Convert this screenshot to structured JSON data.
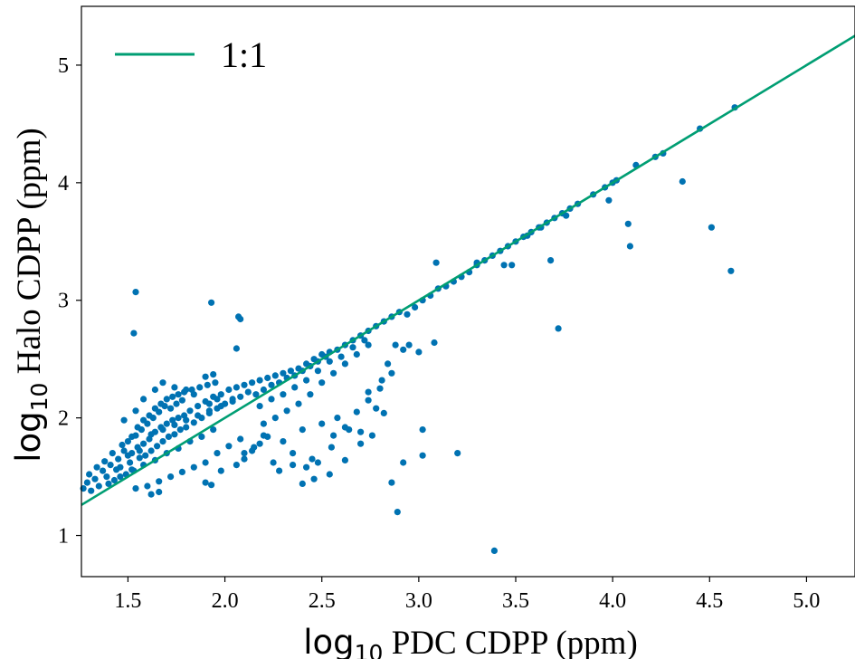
{
  "chart_data": {
    "type": "scatter",
    "xlim": [
      1.26,
      5.25
    ],
    "ylim": [
      0.65,
      5.5
    ],
    "x_ticks": [
      1.5,
      2.0,
      2.5,
      3.0,
      3.5,
      4.0,
      4.5,
      5.0
    ],
    "x_tick_labels": [
      "1.5",
      "2.0",
      "2.5",
      "3.0",
      "3.5",
      "4.0",
      "4.5",
      "5.0"
    ],
    "y_ticks": [
      1,
      2,
      3,
      4,
      5
    ],
    "y_tick_labels": [
      "1",
      "2",
      "3",
      "4",
      "5"
    ],
    "xlabel": {
      "log": "log",
      "sub": "10",
      "rest": " PDC CDPP (ppm)"
    },
    "ylabel": {
      "log": "log",
      "sub": "10",
      "rest": " Halo CDPP (ppm)"
    },
    "grid": false,
    "legend_position": "top-left",
    "colors": {
      "points": "#0072b2",
      "line": "#009e73"
    },
    "series": [
      {
        "kind": "line",
        "name": "1:1",
        "x": [
          1.26,
          5.25
        ],
        "y": [
          1.26,
          5.25
        ]
      },
      {
        "kind": "scatter",
        "points": [
          [
            1.27,
            1.4
          ],
          [
            1.29,
            1.45
          ],
          [
            1.31,
            1.38
          ],
          [
            1.33,
            1.48
          ],
          [
            1.35,
            1.42
          ],
          [
            1.37,
            1.55
          ],
          [
            1.39,
            1.5
          ],
          [
            1.41,
            1.6
          ],
          [
            1.43,
            1.47
          ],
          [
            1.45,
            1.65
          ],
          [
            1.46,
            1.58
          ],
          [
            1.48,
            1.72
          ],
          [
            1.49,
            1.52
          ],
          [
            1.5,
            1.8
          ],
          [
            1.51,
            1.62
          ],
          [
            1.52,
            1.7
          ],
          [
            1.53,
            1.55
          ],
          [
            1.54,
            1.85
          ],
          [
            1.55,
            1.75
          ],
          [
            1.56,
            1.66
          ],
          [
            1.57,
            1.9
          ],
          [
            1.58,
            1.78
          ],
          [
            1.59,
            1.68
          ],
          [
            1.6,
            1.95
          ],
          [
            1.61,
            1.82
          ],
          [
            1.62,
            1.72
          ],
          [
            1.63,
            2.0
          ],
          [
            1.64,
            1.88
          ],
          [
            1.65,
            1.76
          ],
          [
            1.66,
            2.05
          ],
          [
            1.67,
            1.92
          ],
          [
            1.68,
            1.8
          ],
          [
            1.69,
            2.1
          ],
          [
            1.7,
            1.95
          ],
          [
            1.71,
            1.84
          ],
          [
            1.72,
            2.08
          ],
          [
            1.73,
            1.98
          ],
          [
            1.74,
            1.86
          ],
          [
            1.75,
            2.12
          ],
          [
            1.76,
            2.0
          ],
          [
            1.77,
            1.9
          ],
          [
            1.78,
            2.15
          ],
          [
            1.79,
            2.02
          ],
          [
            1.8,
            1.92
          ],
          [
            1.82,
            2.06
          ],
          [
            1.84,
            1.96
          ],
          [
            1.86,
            2.1
          ],
          [
            1.88,
            2.0
          ],
          [
            1.9,
            2.14
          ],
          [
            1.92,
            2.04
          ],
          [
            1.94,
            2.18
          ],
          [
            1.96,
            2.08
          ],
          [
            1.98,
            2.2
          ],
          [
            2.0,
            2.12
          ],
          [
            2.02,
            2.24
          ],
          [
            2.04,
            2.16
          ],
          [
            2.06,
            2.26
          ],
          [
            2.08,
            2.18
          ],
          [
            2.1,
            2.28
          ],
          [
            2.12,
            2.22
          ],
          [
            1.3,
            1.52
          ],
          [
            1.34,
            1.58
          ],
          [
            1.38,
            1.63
          ],
          [
            1.42,
            1.7
          ],
          [
            1.44,
            1.56
          ],
          [
            1.47,
            1.77
          ],
          [
            1.52,
            1.84
          ],
          [
            1.55,
            1.92
          ],
          [
            1.58,
            1.98
          ],
          [
            1.61,
            2.02
          ],
          [
            1.64,
            2.08
          ],
          [
            1.67,
            2.12
          ],
          [
            1.7,
            2.16
          ],
          [
            1.73,
            2.18
          ],
          [
            1.76,
            2.2
          ],
          [
            1.79,
            2.22
          ],
          [
            1.83,
            2.24
          ],
          [
            1.87,
            2.26
          ],
          [
            1.91,
            2.28
          ],
          [
            1.95,
            2.3
          ],
          [
            1.4,
            1.44
          ],
          [
            1.46,
            1.5
          ],
          [
            1.52,
            1.56
          ],
          [
            1.58,
            1.6
          ],
          [
            1.64,
            1.64
          ],
          [
            1.7,
            1.7
          ],
          [
            1.76,
            1.74
          ],
          [
            1.82,
            1.8
          ],
          [
            1.88,
            1.84
          ],
          [
            1.94,
            1.9
          ],
          [
            1.5,
            1.68
          ],
          [
            1.56,
            1.72
          ],
          [
            1.62,
            1.86
          ],
          [
            1.68,
            1.9
          ],
          [
            1.74,
            1.94
          ],
          [
            1.8,
            1.98
          ],
          [
            1.86,
            2.02
          ],
          [
            1.92,
            2.06
          ],
          [
            1.98,
            2.1
          ],
          [
            2.04,
            2.14
          ],
          [
            1.54,
            1.4
          ],
          [
            1.6,
            1.42
          ],
          [
            1.66,
            1.46
          ],
          [
            1.72,
            1.5
          ],
          [
            1.78,
            1.54
          ],
          [
            1.84,
            1.58
          ],
          [
            1.9,
            1.62
          ],
          [
            1.96,
            1.7
          ],
          [
            2.02,
            1.76
          ],
          [
            2.08,
            1.82
          ],
          [
            1.62,
            1.35
          ],
          [
            1.66,
            1.37
          ],
          [
            1.9,
            1.45
          ],
          [
            1.93,
            1.43
          ],
          [
            1.98,
            1.55
          ],
          [
            2.06,
            1.6
          ],
          [
            2.1,
            1.65
          ],
          [
            2.14,
            1.72
          ],
          [
            2.18,
            1.78
          ],
          [
            2.22,
            1.84
          ],
          [
            2.14,
            2.3
          ],
          [
            2.18,
            2.32
          ],
          [
            2.22,
            2.34
          ],
          [
            2.26,
            2.36
          ],
          [
            2.3,
            2.38
          ],
          [
            2.34,
            2.4
          ],
          [
            2.38,
            2.42
          ],
          [
            2.42,
            2.46
          ],
          [
            2.46,
            2.5
          ],
          [
            2.5,
            2.54
          ],
          [
            2.16,
            2.2
          ],
          [
            2.2,
            2.24
          ],
          [
            2.24,
            2.28
          ],
          [
            2.28,
            2.3
          ],
          [
            2.32,
            2.34
          ],
          [
            2.36,
            2.36
          ],
          [
            2.4,
            2.4
          ],
          [
            2.44,
            2.44
          ],
          [
            2.48,
            2.48
          ],
          [
            2.52,
            2.52
          ],
          [
            2.54,
            2.56
          ],
          [
            2.58,
            2.58
          ],
          [
            2.62,
            2.62
          ],
          [
            2.66,
            2.66
          ],
          [
            2.7,
            2.7
          ],
          [
            2.74,
            2.74
          ],
          [
            2.78,
            2.78
          ],
          [
            2.82,
            2.82
          ],
          [
            2.86,
            2.86
          ],
          [
            2.9,
            2.9
          ],
          [
            2.18,
            2.1
          ],
          [
            2.24,
            2.16
          ],
          [
            2.3,
            2.2
          ],
          [
            2.36,
            2.26
          ],
          [
            2.42,
            2.32
          ],
          [
            2.48,
            2.4
          ],
          [
            2.54,
            2.48
          ],
          [
            2.6,
            2.52
          ],
          [
            2.66,
            2.6
          ],
          [
            2.72,
            2.66
          ],
          [
            2.2,
            1.95
          ],
          [
            2.26,
            2.0
          ],
          [
            2.32,
            2.06
          ],
          [
            2.38,
            2.12
          ],
          [
            2.44,
            2.2
          ],
          [
            2.5,
            2.3
          ],
          [
            2.56,
            2.38
          ],
          [
            2.62,
            2.46
          ],
          [
            2.68,
            2.54
          ],
          [
            2.74,
            2.62
          ],
          [
            2.1,
            1.7
          ],
          [
            2.15,
            1.75
          ],
          [
            2.2,
            1.85
          ],
          [
            2.25,
            1.62
          ],
          [
            2.3,
            1.8
          ],
          [
            2.35,
            1.7
          ],
          [
            2.4,
            1.9
          ],
          [
            2.45,
            1.65
          ],
          [
            2.5,
            1.95
          ],
          [
            2.55,
            1.75
          ],
          [
            2.28,
            1.55
          ],
          [
            2.35,
            1.6
          ],
          [
            2.42,
            1.58
          ],
          [
            2.48,
            1.62
          ],
          [
            2.56,
            1.85
          ],
          [
            2.62,
            1.92
          ],
          [
            2.68,
            2.05
          ],
          [
            2.74,
            2.15
          ],
          [
            2.8,
            2.25
          ],
          [
            2.86,
            2.38
          ],
          [
            2.58,
            2.0
          ],
          [
            2.64,
            1.9
          ],
          [
            2.7,
            1.88
          ],
          [
            2.76,
            1.85
          ],
          [
            2.81,
            2.32
          ],
          [
            2.84,
            2.46
          ],
          [
            2.88,
            2.62
          ],
          [
            2.92,
            2.58
          ],
          [
            2.95,
            2.62
          ],
          [
            3.0,
            2.56
          ],
          [
            2.94,
            2.88
          ],
          [
            2.98,
            2.94
          ],
          [
            3.02,
            3.0
          ],
          [
            3.06,
            3.04
          ],
          [
            3.1,
            3.1
          ],
          [
            3.14,
            3.12
          ],
          [
            3.18,
            3.16
          ],
          [
            3.22,
            3.2
          ],
          [
            3.26,
            3.24
          ],
          [
            3.3,
            3.3
          ],
          [
            3.34,
            3.34
          ],
          [
            3.38,
            3.38
          ],
          [
            3.42,
            3.42
          ],
          [
            3.46,
            3.46
          ],
          [
            3.5,
            3.5
          ],
          [
            3.54,
            3.54
          ],
          [
            3.58,
            3.58
          ],
          [
            3.62,
            3.62
          ],
          [
            3.66,
            3.66
          ],
          [
            3.7,
            3.7
          ],
          [
            3.74,
            3.74
          ],
          [
            3.78,
            3.78
          ],
          [
            3.82,
            3.82
          ],
          [
            3.9,
            3.9
          ],
          [
            3.96,
            3.96
          ],
          [
            4.0,
            4.0
          ],
          [
            4.02,
            4.02
          ],
          [
            4.12,
            4.15
          ],
          [
            4.22,
            4.22
          ],
          [
            4.26,
            4.25
          ],
          [
            4.45,
            4.46
          ],
          [
            4.63,
            4.64
          ],
          [
            3.09,
            3.32
          ],
          [
            3.3,
            3.32
          ],
          [
            3.44,
            3.3
          ],
          [
            3.48,
            3.3
          ],
          [
            3.56,
            3.55
          ],
          [
            3.63,
            3.62
          ],
          [
            3.68,
            3.34
          ],
          [
            3.72,
            2.76
          ],
          [
            3.76,
            3.72
          ],
          [
            3.98,
            3.85
          ],
          [
            4.08,
            3.65
          ],
          [
            4.09,
            3.46
          ],
          [
            4.36,
            4.01
          ],
          [
            4.51,
            3.62
          ],
          [
            4.61,
            3.25
          ],
          [
            1.53,
            2.72
          ],
          [
            1.54,
            3.07
          ],
          [
            1.93,
            2.98
          ],
          [
            2.07,
            2.86
          ],
          [
            2.08,
            2.84
          ],
          [
            2.06,
            2.59
          ],
          [
            1.94,
            2.37
          ],
          [
            1.9,
            2.35
          ],
          [
            3.08,
            2.64
          ],
          [
            3.02,
            1.9
          ],
          [
            3.2,
            1.7
          ],
          [
            3.02,
            1.68
          ],
          [
            2.92,
            1.62
          ],
          [
            2.86,
            1.45
          ],
          [
            2.89,
            1.2
          ],
          [
            3.39,
            0.87
          ],
          [
            2.74,
            2.22
          ],
          [
            2.78,
            2.08
          ],
          [
            2.82,
            2.04
          ],
          [
            2.7,
            1.78
          ],
          [
            2.62,
            1.64
          ],
          [
            2.54,
            1.52
          ],
          [
            2.46,
            1.48
          ],
          [
            2.4,
            1.44
          ],
          [
            1.92,
            2.12
          ],
          [
            1.96,
            2.16
          ],
          [
            1.84,
            2.2
          ],
          [
            1.8,
            2.24
          ],
          [
            1.74,
            2.26
          ],
          [
            1.68,
            2.3
          ],
          [
            1.64,
            2.24
          ],
          [
            1.58,
            2.16
          ],
          [
            1.54,
            2.06
          ],
          [
            1.48,
            1.98
          ]
        ]
      }
    ]
  }
}
